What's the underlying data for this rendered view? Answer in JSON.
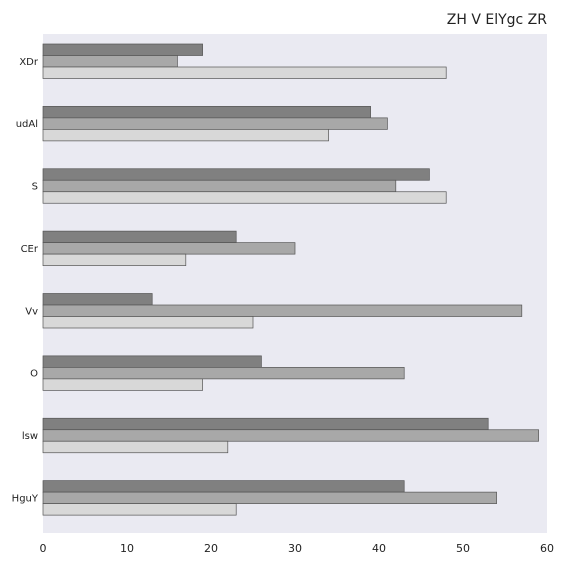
{
  "chart_data": {
    "type": "bar",
    "orientation": "horizontal",
    "title": "ZH V ElYgc ZR",
    "xlabel": "",
    "ylabel": "",
    "categories": [
      "XDr",
      "udAl",
      "S",
      "CEr",
      "Vv",
      "O",
      "lsw",
      "HguY"
    ],
    "series": [
      {
        "values": [
          19,
          39,
          46,
          23,
          13,
          26,
          53,
          43
        ],
        "color": "#808080"
      },
      {
        "values": [
          16,
          41,
          42,
          30,
          57,
          43,
          59,
          54
        ],
        "color": "#a8a8a8"
      },
      {
        "values": [
          48,
          34,
          48,
          17,
          25,
          19,
          22,
          23
        ],
        "color": "#d8d8d8"
      }
    ],
    "xlim": [
      0,
      60
    ],
    "xticks": [
      0,
      10,
      20,
      30,
      40,
      50,
      60
    ],
    "grid": false,
    "legend": "none",
    "plot_background": "#eaeaf2"
  }
}
